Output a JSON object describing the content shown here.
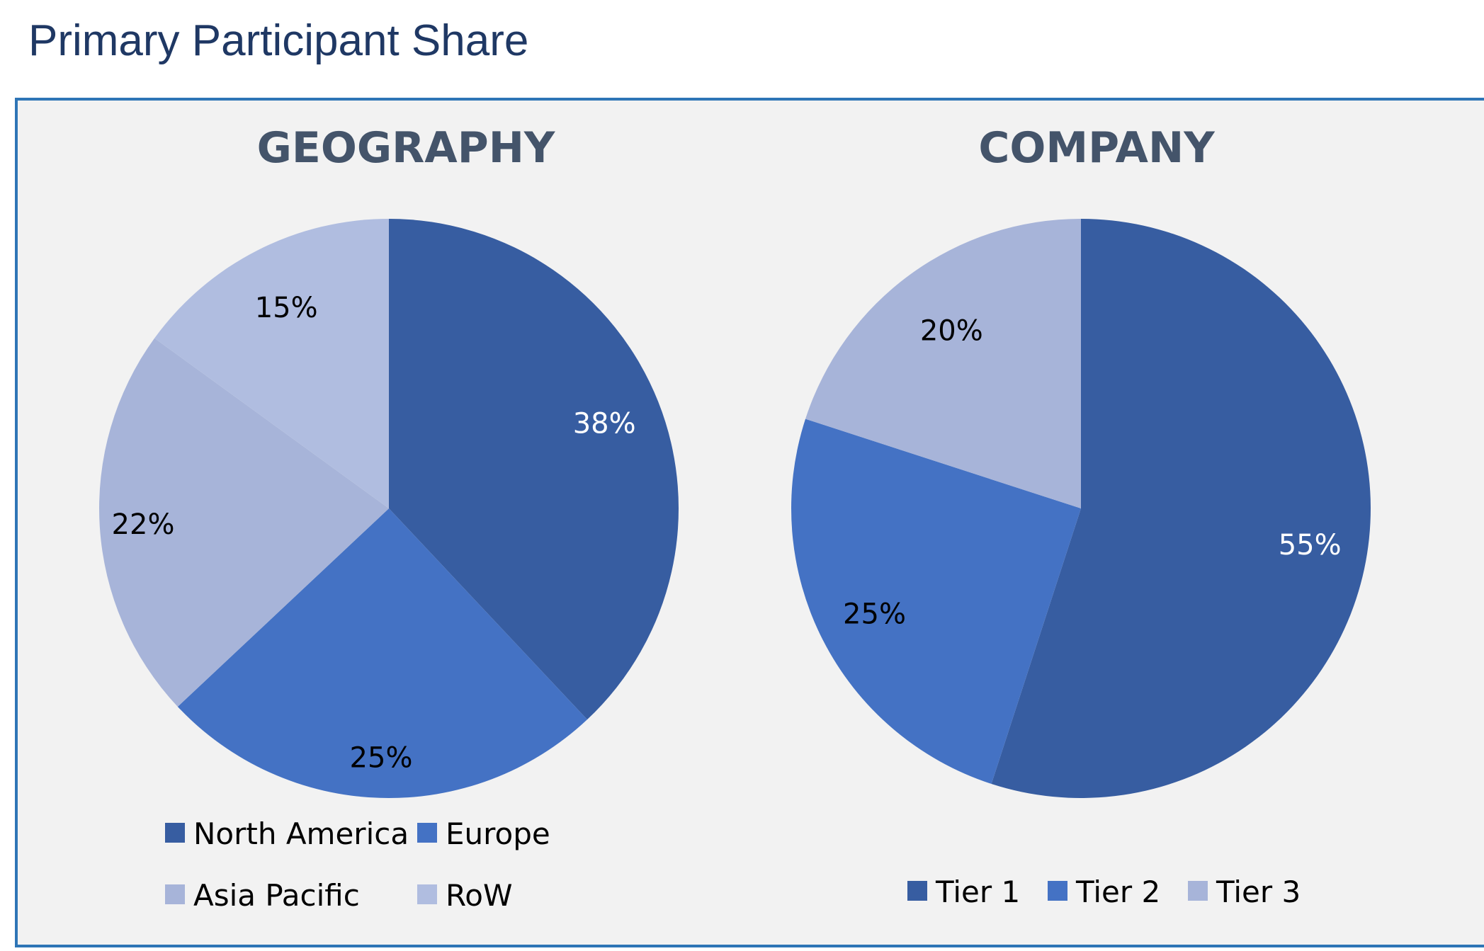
{
  "page_title": "Primary Participant Share",
  "colors": {
    "title": "#1f3864",
    "panel_border": "#2e75b6",
    "panel_bg": "#f2f2f2",
    "dark_blue": "#375da1",
    "mid_blue": "#4472c4",
    "light_blue": "#a7b4d9",
    "lighter_blue": "#b0bde0"
  },
  "chart_data": [
    {
      "type": "pie",
      "title": "GEOGRAPHY",
      "start_angle": "12 o'clock, clockwise",
      "legend_position": "bottom",
      "slices": [
        {
          "label": "North America",
          "value": 38,
          "display": "38%",
          "color": "#375da1",
          "label_color": "#ffffff"
        },
        {
          "label": "Europe",
          "value": 25,
          "display": "25%",
          "color": "#4472c4",
          "label_color": "#000000"
        },
        {
          "label": "Asia Pacific",
          "value": 22,
          "display": "22%",
          "color": "#a7b4d9",
          "label_color": "#000000"
        },
        {
          "label": "RoW",
          "value": 15,
          "display": "15%",
          "color": "#b0bde0",
          "label_color": "#000000"
        }
      ]
    },
    {
      "type": "pie",
      "title": "COMPANY",
      "start_angle": "12 o'clock, clockwise",
      "legend_position": "bottom",
      "slices": [
        {
          "label": "Tier 1",
          "value": 55,
          "display": "55%",
          "color": "#375da1",
          "label_color": "#ffffff"
        },
        {
          "label": "Tier 2",
          "value": 25,
          "display": "25%",
          "color": "#4472c4",
          "label_color": "#000000"
        },
        {
          "label": "Tier 3",
          "value": 20,
          "display": "20%",
          "color": "#a7b4d9",
          "label_color": "#000000"
        }
      ]
    }
  ]
}
